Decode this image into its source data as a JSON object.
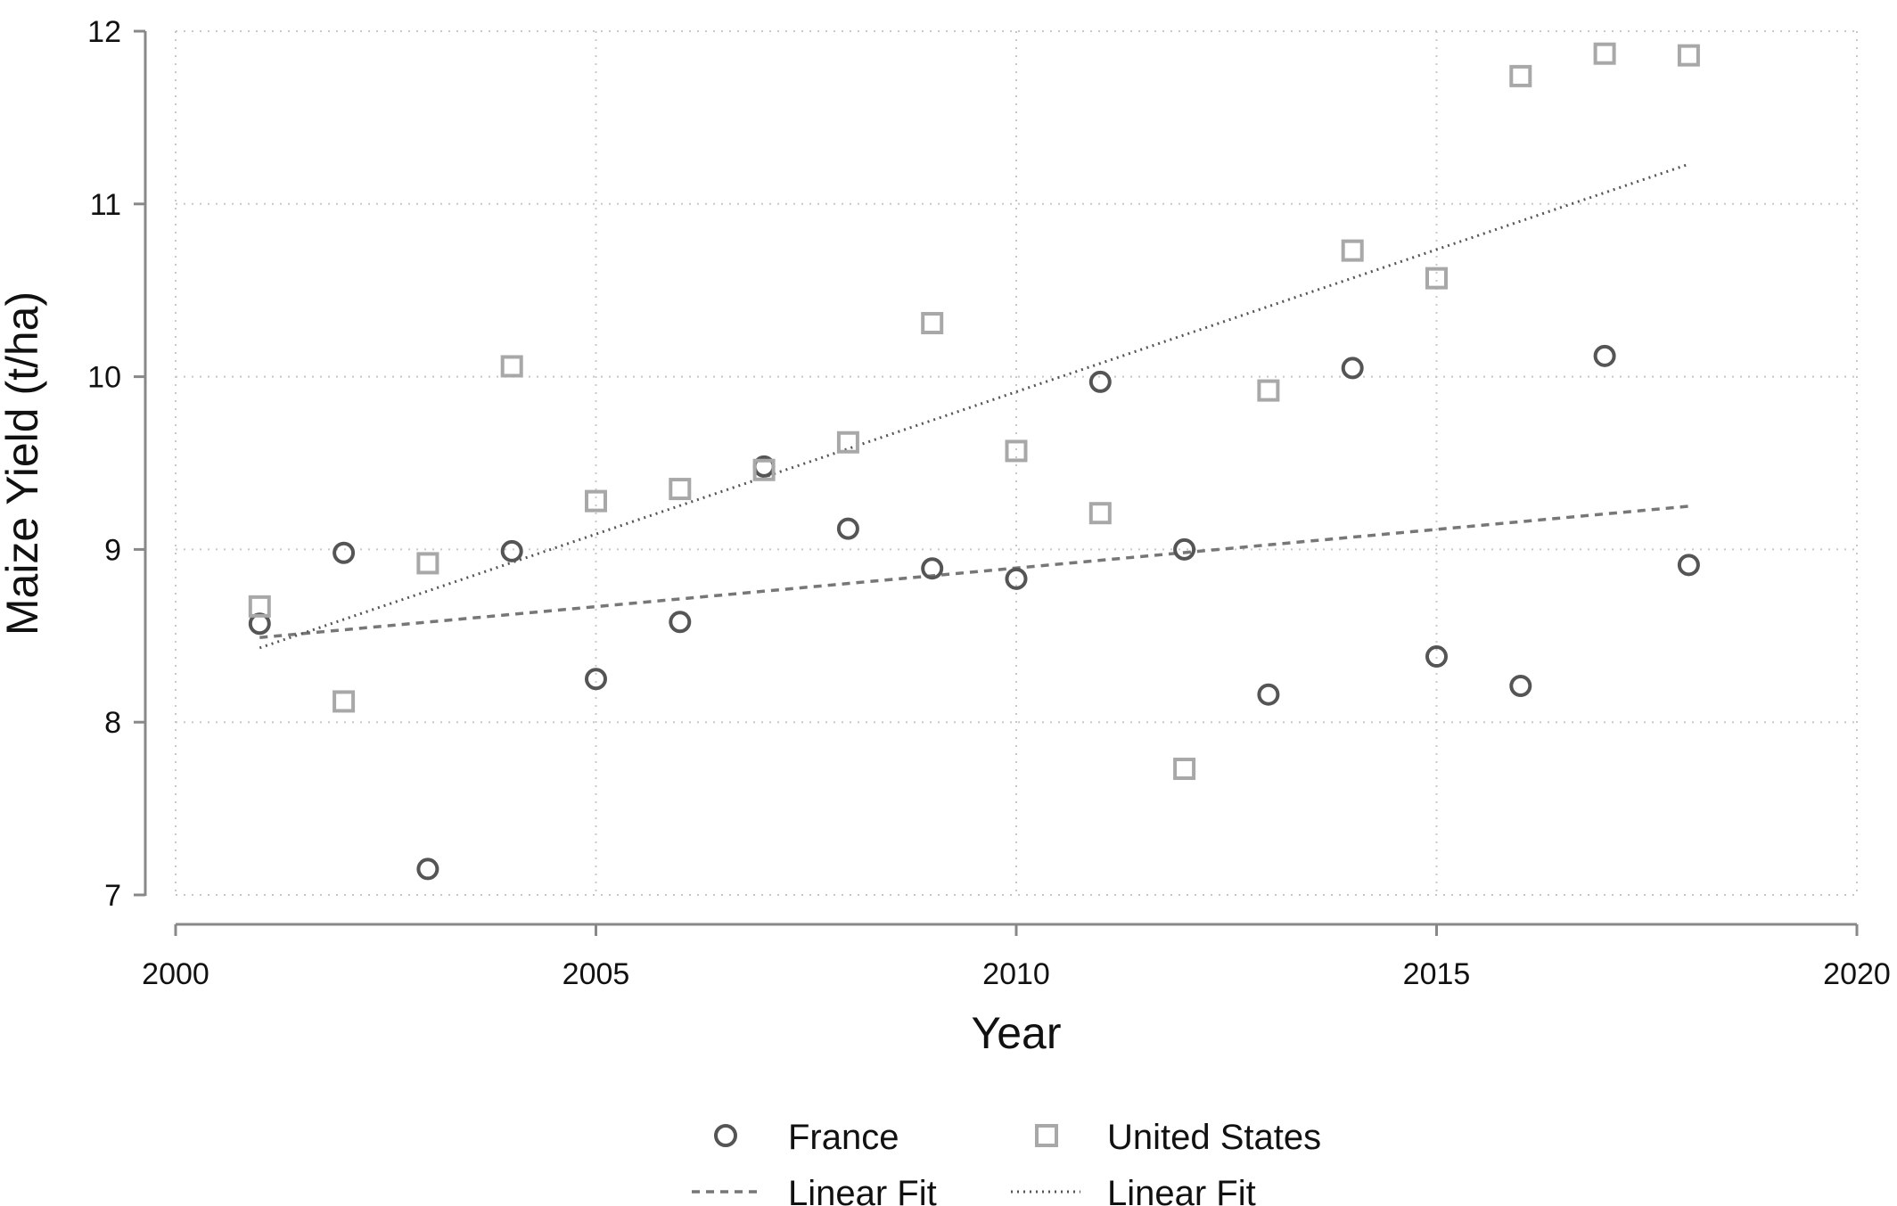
{
  "chart_data": {
    "type": "scatter",
    "xlabel": "Year",
    "ylabel": "Maize Yield (t/ha)",
    "xlim": [
      2000,
      2020
    ],
    "ylim": [
      7,
      12
    ],
    "xticks": [
      2000,
      2005,
      2010,
      2015,
      2020
    ],
    "yticks": [
      7,
      8,
      9,
      10,
      11,
      12
    ],
    "grid": true,
    "legend_position": "bottom",
    "series": [
      {
        "name": "France",
        "kind": "points",
        "marker": "circle",
        "color": "#555555",
        "x": [
          2001,
          2002,
          2003,
          2004,
          2005,
          2006,
          2007,
          2008,
          2009,
          2010,
          2011,
          2012,
          2013,
          2014,
          2015,
          2016,
          2017,
          2018
        ],
        "y": [
          8.57,
          8.98,
          7.15,
          8.99,
          8.25,
          8.58,
          9.48,
          9.12,
          8.89,
          8.83,
          9.97,
          9.0,
          8.16,
          10.05,
          8.38,
          8.21,
          10.12,
          8.91
        ]
      },
      {
        "name": "United States",
        "kind": "points",
        "marker": "square",
        "color": "#a8a8a8",
        "x": [
          2001,
          2002,
          2003,
          2004,
          2005,
          2006,
          2007,
          2008,
          2009,
          2010,
          2011,
          2012,
          2013,
          2014,
          2015,
          2016,
          2017,
          2018
        ],
        "y": [
          8.67,
          8.12,
          8.92,
          10.06,
          9.28,
          9.35,
          9.46,
          9.62,
          10.31,
          9.57,
          9.21,
          7.73,
          9.92,
          10.73,
          10.57,
          11.74,
          11.87,
          11.86
        ]
      },
      {
        "name": "Linear Fit",
        "kind": "line",
        "style": "dashed",
        "color": "#777777",
        "x": [
          2001,
          2018
        ],
        "y": [
          8.49,
          9.25
        ]
      },
      {
        "name": "Linear Fit",
        "kind": "line",
        "style": "dotted",
        "color": "#555555",
        "x": [
          2001,
          2018
        ],
        "y": [
          8.43,
          11.23
        ]
      }
    ]
  }
}
